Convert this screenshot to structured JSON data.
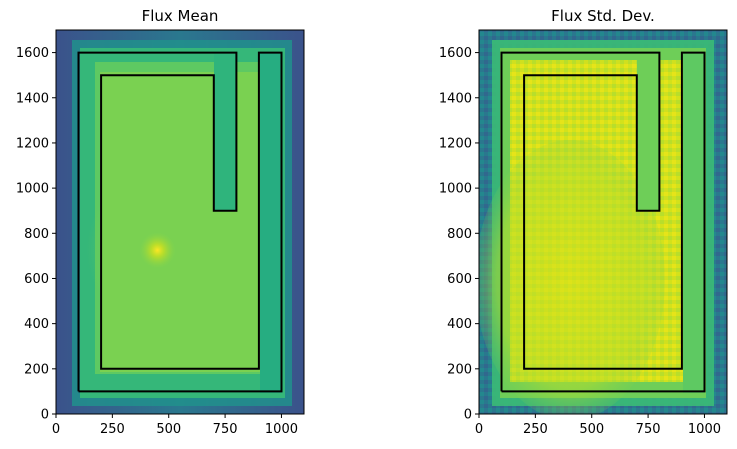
{
  "chart_data": [
    {
      "type": "heatmap",
      "title": "Flux Mean",
      "xlim": [
        0,
        1100
      ],
      "ylim": [
        0,
        1700
      ],
      "x_ticks": [
        0,
        250,
        500,
        750,
        1000
      ],
      "y_ticks": [
        0,
        200,
        400,
        600,
        800,
        1000,
        1200,
        1400,
        1600
      ],
      "colormap": "viridis",
      "hotspot": {
        "x": 450,
        "y": 725
      },
      "boundary_outline": [
        [
          100,
          100
        ],
        [
          100,
          1600
        ],
        [
          800,
          1600
        ],
        [
          800,
          900
        ],
        [
          700,
          900
        ],
        [
          700,
          1500
        ],
        [
          200,
          1500
        ],
        [
          200,
          200
        ],
        [
          900,
          200
        ],
        [
          900,
          1600
        ],
        [
          1000,
          1600
        ],
        [
          1000,
          100
        ],
        [
          100,
          100
        ]
      ],
      "grid": false
    },
    {
      "type": "heatmap",
      "title": "Flux Std. Dev.",
      "xlim": [
        0,
        1100
      ],
      "ylim": [
        0,
        1700
      ],
      "x_ticks": [
        0,
        250,
        500,
        750,
        1000
      ],
      "y_ticks": [
        0,
        200,
        400,
        600,
        800,
        1000,
        1200,
        1400,
        1600
      ],
      "colormap": "viridis",
      "boundary_outline": [
        [
          100,
          100
        ],
        [
          100,
          1600
        ],
        [
          800,
          1600
        ],
        [
          800,
          900
        ],
        [
          700,
          900
        ],
        [
          700,
          1500
        ],
        [
          200,
          1500
        ],
        [
          200,
          200
        ],
        [
          900,
          200
        ],
        [
          900,
          1600
        ],
        [
          1000,
          1600
        ],
        [
          1000,
          100
        ],
        [
          100,
          100
        ]
      ],
      "grid": false
    }
  ]
}
